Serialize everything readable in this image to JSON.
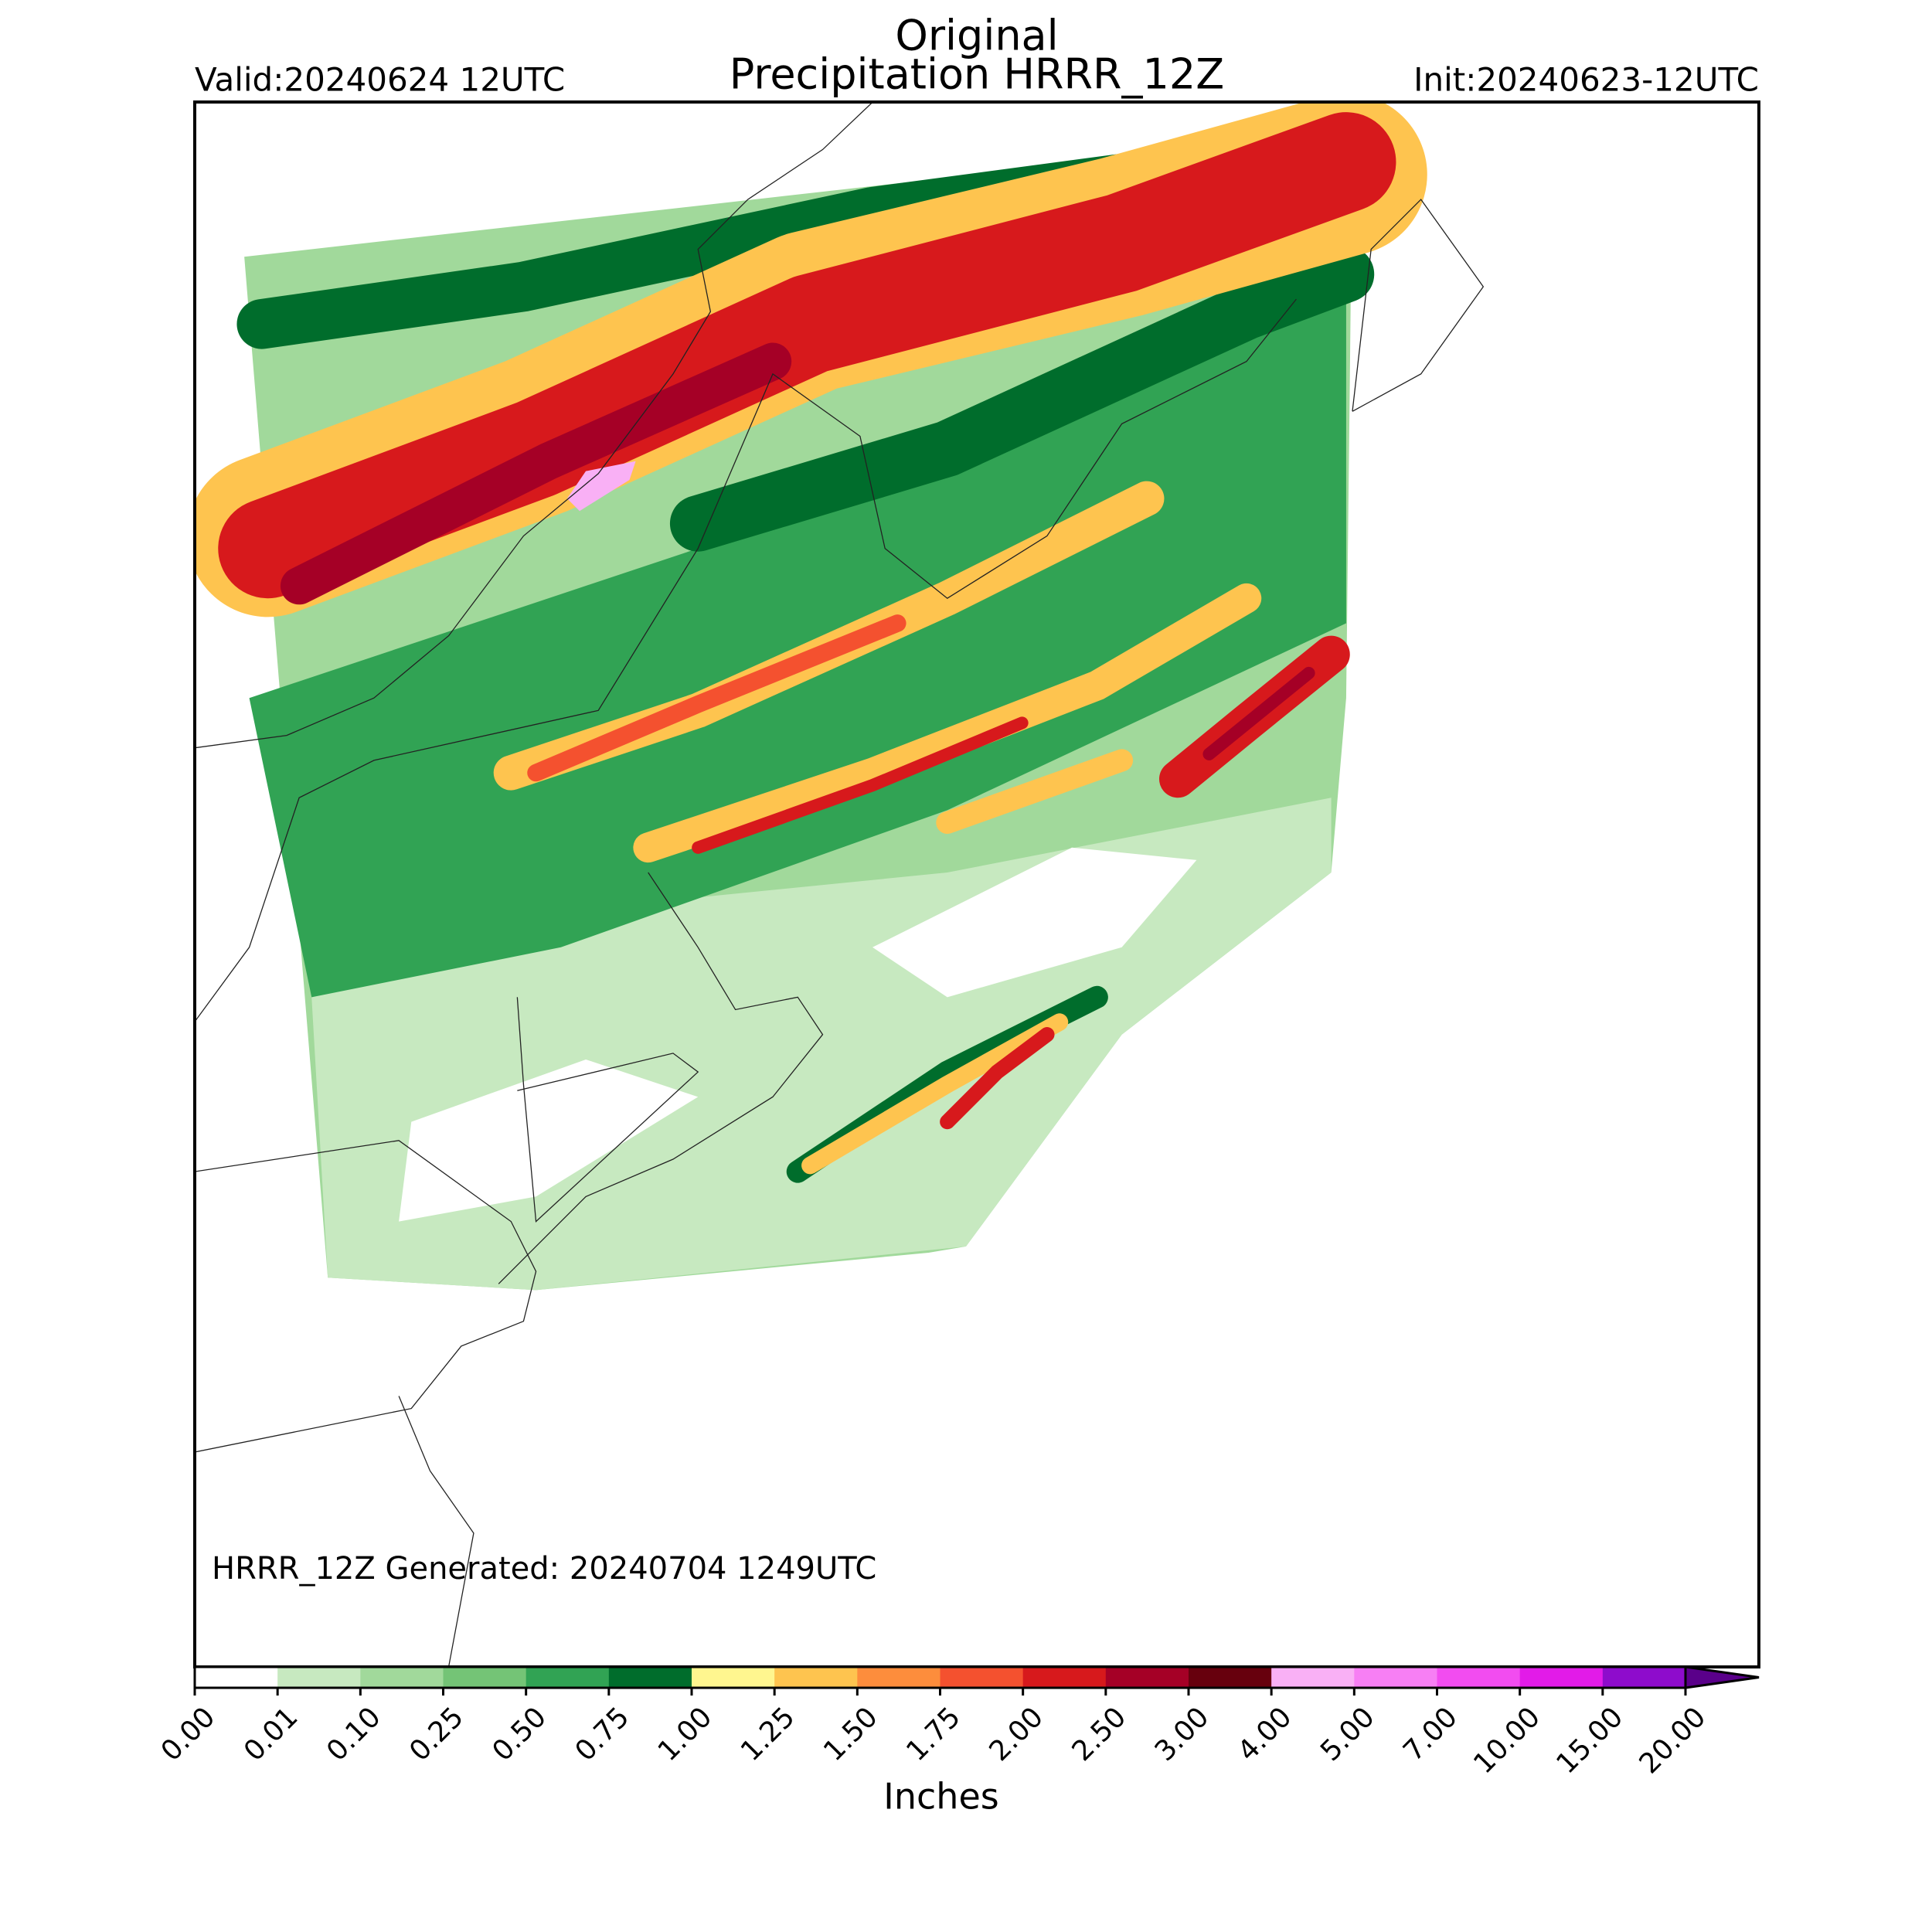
{
  "header": {
    "title": "Original",
    "subtitle": "Precipitation HRRR_12Z",
    "valid": "Valid:20240624 12UTC",
    "init": "Init:20240623-12UTC"
  },
  "map": {
    "note": "HRRR_12Z Generated: 20240704 1249UTC"
  },
  "colorbar": {
    "label": "Inches",
    "ticks": [
      {
        "value": 0,
        "label": "0.00"
      },
      0.01,
      {
        "value": 0.1,
        "label": "0.10"
      },
      0.25,
      {
        "value": 0.5,
        "label": "0.50"
      },
      0.75,
      {
        "value": 1,
        "label": "1.00"
      },
      1.25,
      {
        "value": 1.5,
        "label": "1.50"
      },
      1.75,
      {
        "value": 2,
        "label": "2.00"
      },
      {
        "value": 2.5,
        "label": "2.50"
      },
      {
        "value": 3,
        "label": "3.00"
      },
      {
        "value": 4,
        "label": "4.00"
      },
      {
        "value": 5,
        "label": "5.00"
      },
      {
        "value": 7,
        "label": "7.00"
      },
      {
        "value": 10,
        "label": "10.00"
      },
      {
        "value": 15,
        "label": "15.00"
      },
      {
        "value": 20,
        "label": "20.00"
      }
    ],
    "colors": [
      "#ffffff",
      "#c7e9c0",
      "#a1d99b",
      "#74c476",
      "#31a354",
      "#006d2c",
      "#fff68f",
      "#fec44f",
      "#fd8d3c",
      "#f4512f",
      "#d7191c",
      "#a50026",
      "#67000d",
      "#f9b0f5",
      "#f77ff4",
      "#f24cf0",
      "#e21be8",
      "#8e0ccc"
    ],
    "extend_color": "#5a008a"
  }
}
